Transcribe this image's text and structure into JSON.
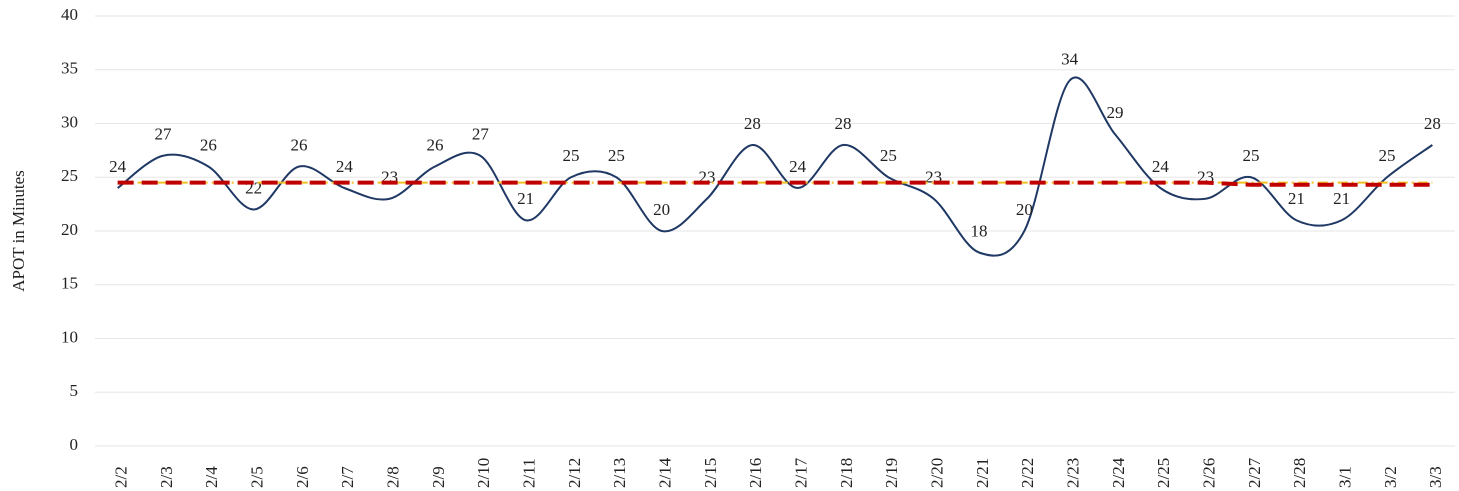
{
  "chart_data": {
    "type": "line",
    "y_label": "APOT in Minutes",
    "categories": [
      "2/2",
      "2/3",
      "2/4",
      "2/5",
      "2/6",
      "2/7",
      "2/8",
      "2/9",
      "2/10",
      "2/11",
      "2/12",
      "2/13",
      "2/14",
      "2/15",
      "2/16",
      "2/17",
      "2/18",
      "2/19",
      "2/20",
      "2/21",
      "2/22",
      "2/23",
      "2/24",
      "2/25",
      "2/26",
      "2/27",
      "2/28",
      "3/1",
      "3/2",
      "3/3"
    ],
    "series": [
      {
        "color": "#1f3864",
        "style": "smooth",
        "labels": true,
        "values": [
          24,
          27,
          26,
          22,
          26,
          24,
          23,
          26,
          27,
          21,
          25,
          25,
          20,
          23,
          28,
          24,
          28,
          25,
          23,
          18,
          20,
          34,
          29,
          24,
          23,
          25,
          21,
          21,
          25,
          28
        ]
      },
      {
        "color": "#f0c020",
        "style": "dashdot",
        "values": [
          24.5,
          24.5,
          24.5,
          24.5,
          24.5,
          24.5,
          24.5,
          24.5,
          24.5,
          24.5,
          24.5,
          24.5,
          24.5,
          24.5,
          24.5,
          24.5,
          24.5,
          24.5,
          24.5,
          24.5,
          24.5,
          24.5,
          24.5,
          24.5,
          24.5,
          24.5,
          24.5,
          24.5,
          24.5,
          24.5
        ]
      },
      {
        "color": "#c00000",
        "style": "dashed",
        "values": [
          24.5,
          24.5,
          24.5,
          24.5,
          24.5,
          24.5,
          24.5,
          24.5,
          24.5,
          24.5,
          24.5,
          24.5,
          24.5,
          24.5,
          24.5,
          24.5,
          24.5,
          24.5,
          24.5,
          24.5,
          24.5,
          24.5,
          24.5,
          24.5,
          24.5,
          24.3,
          24.3,
          24.3,
          24.3,
          24.3
        ]
      }
    ],
    "ylim": [
      0,
      40
    ],
    "yticks": [
      0,
      5,
      10,
      15,
      20,
      25,
      30,
      35,
      40
    ],
    "grid": true
  }
}
